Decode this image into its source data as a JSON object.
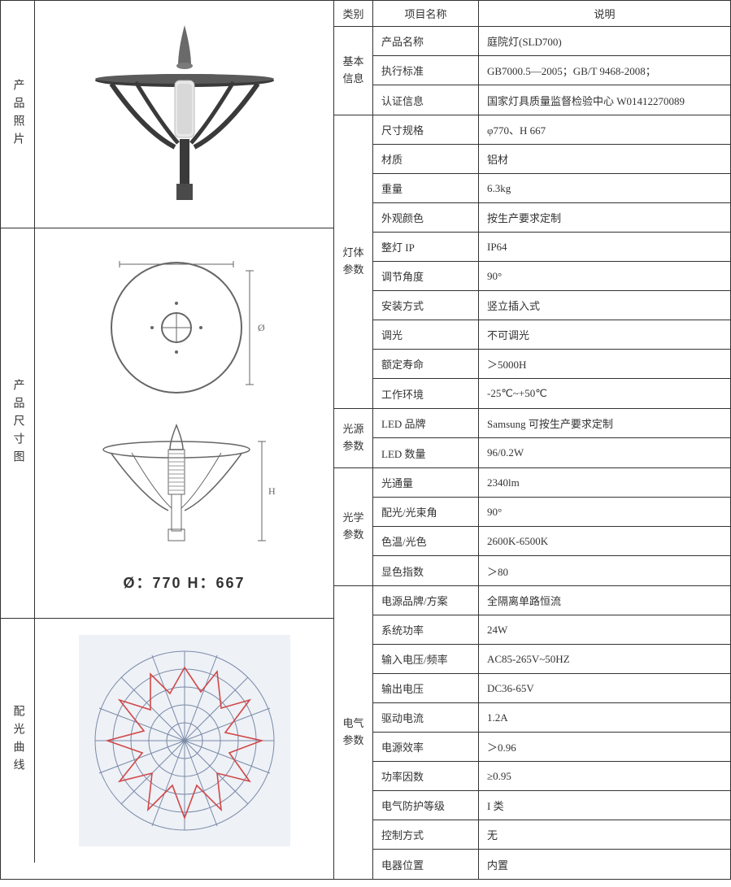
{
  "left": {
    "photo_label": "产品照片",
    "dim_label": "产品尺寸图",
    "curve_label": "配光曲线",
    "dim_caption": "Ø：770  H：667"
  },
  "headers": {
    "category": "类别",
    "item": "项目名称",
    "desc": "说明"
  },
  "groups": [
    {
      "label": "基本\n信息",
      "rows": [
        {
          "name": "产品名称",
          "value": "庭院灯(SLD700)"
        },
        {
          "name": "执行标准",
          "value": "GB7000.5—2005；GB/T 9468-2008；"
        },
        {
          "name": "认证信息",
          "value": "国家灯具质量监督检验中心 W01412270089"
        }
      ]
    },
    {
      "label": "灯体\n参数",
      "rows": [
        {
          "name": "尺寸规格",
          "value": "φ770、H 667"
        },
        {
          "name": "材质",
          "value": "铝材"
        },
        {
          "name": "重量",
          "value": "6.3kg"
        },
        {
          "name": "外观颜色",
          "value": "按生产要求定制"
        },
        {
          "name": "整灯 IP",
          "value": "IP64"
        },
        {
          "name": "调节角度",
          "value": "90°"
        },
        {
          "name": "安装方式",
          "value": "竖立插入式"
        },
        {
          "name": "调光",
          "value": "不可调光"
        },
        {
          "name": "额定寿命",
          "value": "＞5000H"
        },
        {
          "name": "工作环境",
          "value": "-25℃~+50℃"
        }
      ]
    },
    {
      "label": "光源\n参数",
      "rows": [
        {
          "name": "LED 品牌",
          "value": "Samsung 可按生产要求定制"
        },
        {
          "name": "LED 数量",
          "value": "96/0.2W"
        }
      ]
    },
    {
      "label": "光学\n参数",
      "rows": [
        {
          "name": "光通量",
          "value": "2340lm"
        },
        {
          "name": "配光/光束角",
          "value": "90°"
        },
        {
          "name": "色温/光色",
          "value": "2600K-6500K"
        },
        {
          "name": "显色指数",
          "value": "＞80"
        }
      ]
    },
    {
      "label": "电气\n参数",
      "rows": [
        {
          "name": "电源品牌/方案",
          "value": "全隔离单路恒流"
        },
        {
          "name": "系统功率",
          "value": "24W"
        },
        {
          "name": "输入电压/频率",
          "value": "AC85-265V~50HZ"
        },
        {
          "name": "输出电压",
          "value": "DC36-65V"
        },
        {
          "name": "驱动电流",
          "value": "1.2A"
        },
        {
          "name": "电源效率",
          "value": "＞0.96"
        },
        {
          "name": "功率因数",
          "value": "≥0.95"
        },
        {
          "name": "电气防护等级",
          "value": "I 类"
        },
        {
          "name": "控制方式",
          "value": "无"
        },
        {
          "name": "电器位置",
          "value": "内置"
        }
      ]
    }
  ],
  "colors": {
    "border": "#333333",
    "text": "#333333",
    "bg": "#ffffff",
    "lamp_body": "#4a4a4a",
    "lamp_glass": "#dcdcdc",
    "dim_stroke": "#666666",
    "curve_grid": "#7a8aa8",
    "curve_line": "#d04848",
    "curve_bg": "#e8ecf2"
  }
}
